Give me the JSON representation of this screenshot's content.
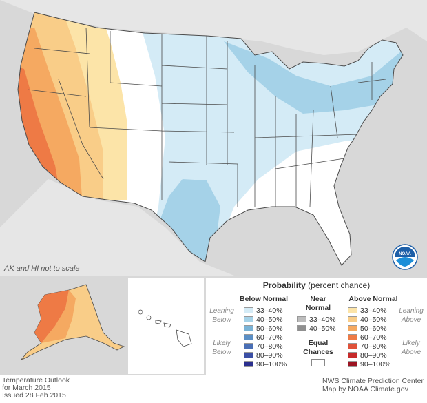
{
  "map": {
    "note": "AK and HI not to scale",
    "logo": "NOAA",
    "colors": {
      "background": "#d8d8d8",
      "equal_chances": "#ffffff",
      "below_33_40": "#d4ebf6",
      "below_40_50": "#a5d2e8",
      "above_33_40": "#fce4a8",
      "above_40_50": "#f9cd88",
      "above_50_60": "#f5a961",
      "above_60_70": "#ee7a45",
      "state_lines": "#4a4a4a"
    }
  },
  "legend": {
    "title_bold": "Probability",
    "title_rest": " (percent chance)",
    "below_normal": "Below Normal",
    "near_normal_line1": "Near",
    "near_normal_line2": "Normal",
    "above_normal": "Above Normal",
    "leaning_below_1": "Leaning",
    "leaning_below_2": "Below",
    "likely_below_1": "Likely",
    "likely_below_2": "Below",
    "leaning_above_1": "Leaning",
    "leaning_above_2": "Above",
    "likely_above_1": "Likely",
    "likely_above_2": "Above",
    "equal_1": "Equal",
    "equal_2": "Chances",
    "below": [
      {
        "label": "33–40%",
        "color": "#d4ebf6"
      },
      {
        "label": "40–50%",
        "color": "#a5d2e8"
      },
      {
        "label": "50–60%",
        "color": "#7ab3d6"
      },
      {
        "label": "60–70%",
        "color": "#5b8fc5"
      },
      {
        "label": "70–80%",
        "color": "#4a6fb5"
      },
      {
        "label": "80–90%",
        "color": "#3b4fa5"
      },
      {
        "label": "90–100%",
        "color": "#2b2f8f"
      }
    ],
    "near": [
      {
        "label": "33–40%",
        "color": "#bdbdbd"
      },
      {
        "label": "40–50%",
        "color": "#8f8f8f"
      }
    ],
    "above": [
      {
        "label": "33–40%",
        "color": "#fce4a8"
      },
      {
        "label": "40–50%",
        "color": "#f9cd88"
      },
      {
        "label": "50–60%",
        "color": "#f5a961"
      },
      {
        "label": "60–70%",
        "color": "#ee7a45"
      },
      {
        "label": "70–80%",
        "color": "#e0523a"
      },
      {
        "label": "80–90%",
        "color": "#c72b2b"
      },
      {
        "label": "90–100%",
        "color": "#9c1422"
      }
    ]
  },
  "footer": {
    "left_1": "Temperature Outlook",
    "left_2": "for March 2015",
    "left_3": "Issued 28 Feb 2015",
    "right_1": "NWS Climate Prediction Center",
    "right_2": "Map by NOAA Climate.gov"
  }
}
